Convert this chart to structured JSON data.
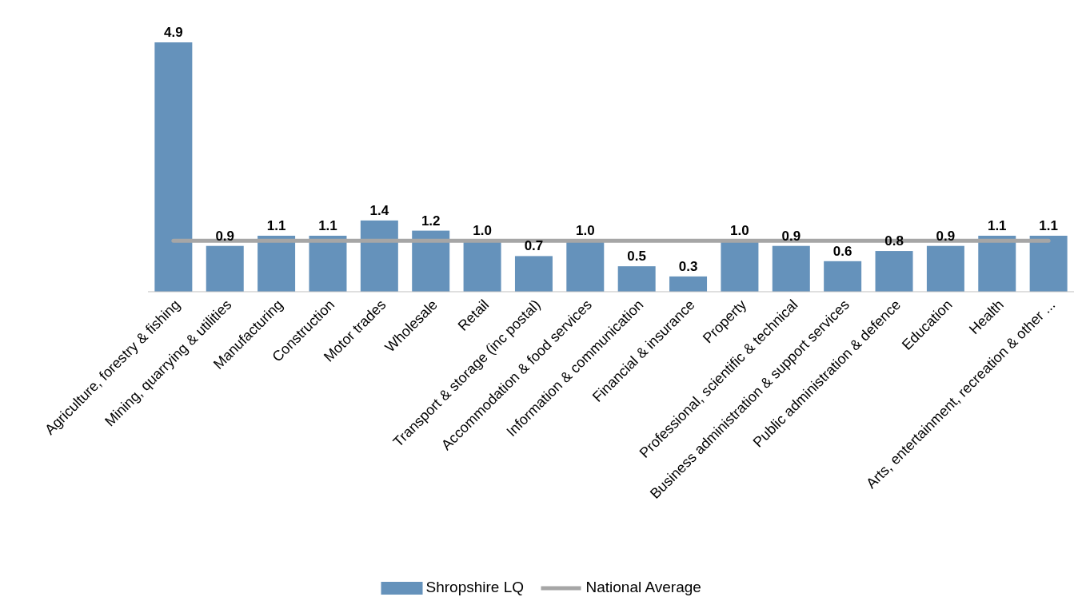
{
  "chart_data": {
    "type": "bar",
    "categories": [
      "Agriculture, forestry & fishing",
      "Mining, quarrying & utilities",
      "Manufacturing",
      "Construction",
      "Motor trades",
      "Wholesale",
      "Retail",
      "Transport & storage (inc postal)",
      "Accommodation & food services",
      "Information & communication",
      "Financial & insurance",
      "Property",
      "Professional, scientific & technical",
      "Business administration & support services",
      "Public administration & defence",
      "Education",
      "Health",
      "Arts, entertainment, recreation & other ..."
    ],
    "series": [
      {
        "name": "Shropshire LQ",
        "color": "#6592bb",
        "values": [
          4.9,
          0.9,
          1.1,
          1.1,
          1.4,
          1.2,
          1.0,
          0.7,
          1.0,
          0.5,
          0.3,
          1.0,
          0.9,
          0.6,
          0.8,
          0.9,
          1.1,
          1.1
        ],
        "value_labels": [
          "4.9",
          "0.9",
          "1.1",
          "1.1",
          "1.4",
          "1.2",
          "1.0",
          "0.7",
          "1.0",
          "0.5",
          "0.3",
          "1.0",
          "0.9",
          "0.6",
          "0.8",
          "0.9",
          "1.1",
          "1.1"
        ]
      },
      {
        "name": "National Average",
        "type": "line",
        "color": "#a6a6a6",
        "values": [
          1,
          1,
          1,
          1,
          1,
          1,
          1,
          1,
          1,
          1,
          1,
          1,
          1,
          1,
          1,
          1,
          1,
          1
        ]
      }
    ],
    "legend": "bottom",
    "grid": false
  }
}
